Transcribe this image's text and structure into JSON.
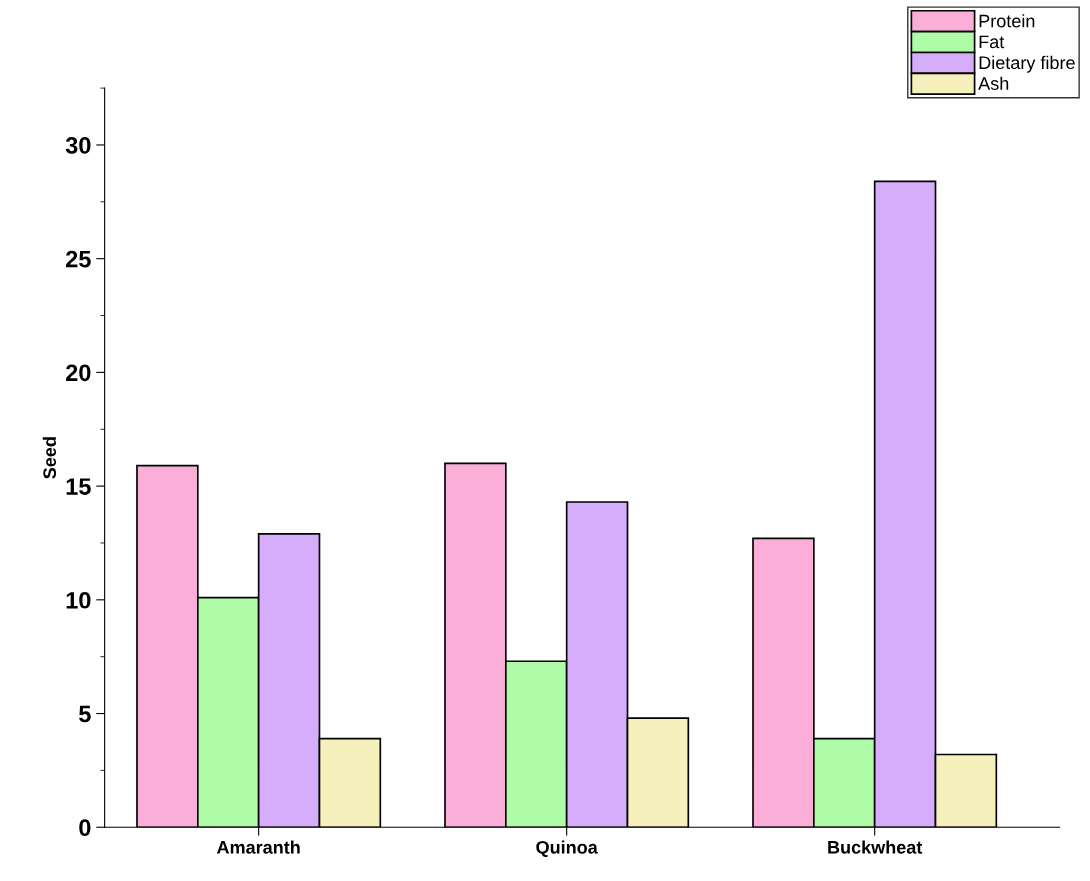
{
  "chart_data": {
    "type": "bar",
    "ylabel": "Seed",
    "categories": [
      "Amaranth",
      "Quinoa",
      "Buckwheat"
    ],
    "series": [
      {
        "name": "Protein",
        "color": "#fbaed8",
        "values": [
          15.9,
          16.0,
          12.7
        ]
      },
      {
        "name": "Fat",
        "color": "#aefba8",
        "values": [
          10.1,
          7.3,
          3.9
        ]
      },
      {
        "name": "Dietary fibre",
        "color": "#d6adfb",
        "values": [
          12.9,
          14.3,
          28.4
        ]
      },
      {
        "name": "Ash",
        "color": "#f6f0bc",
        "values": [
          3.9,
          4.8,
          3.2
        ]
      }
    ],
    "ylim": [
      0,
      32.5
    ],
    "yticks": [
      0,
      5,
      10,
      15,
      20,
      25,
      30
    ],
    "grid": false,
    "legend": "top right"
  }
}
